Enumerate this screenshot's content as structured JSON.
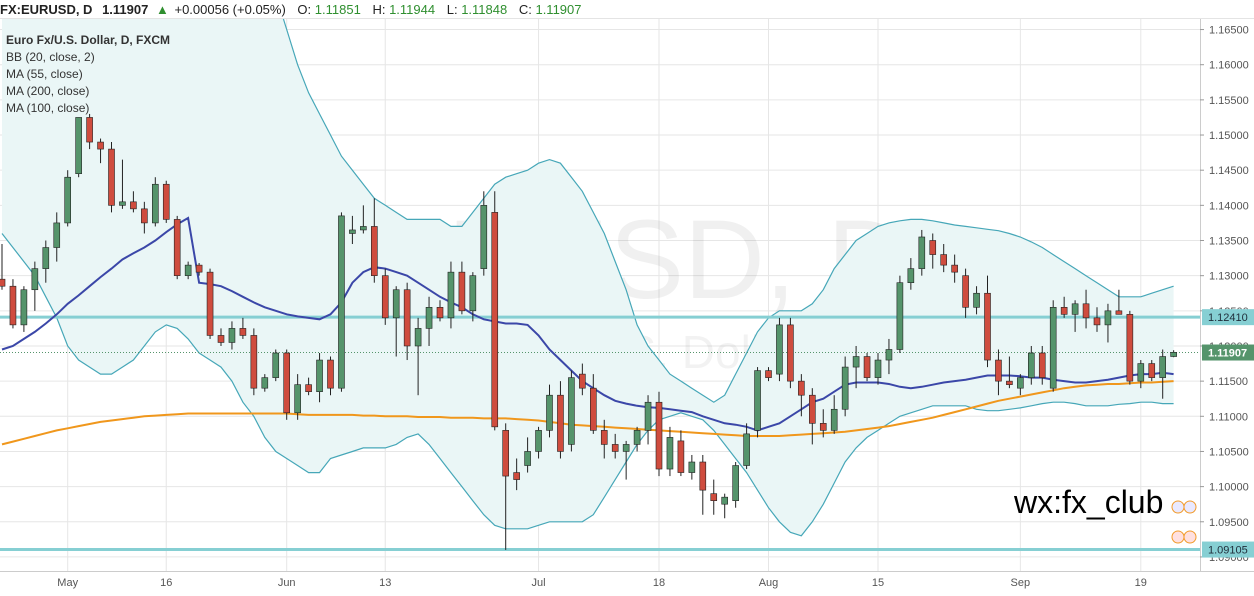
{
  "header": {
    "symbol": "FX:EURUSD, D",
    "last": "1.11907",
    "change": "+0.00056 (+0.05%)",
    "o_label": "O:",
    "o_value": "1.11851",
    "h_label": "H:",
    "h_value": "1.11944",
    "l_label": "L:",
    "l_value": "1.11848",
    "c_label": "C:",
    "c_value": "1.11907"
  },
  "legend": {
    "instrument": "Euro Fx/U.S. Dollar, D, FXCM",
    "studies": [
      "BB (20, close, 2)",
      "MA (55, close)",
      "MA (200, close)",
      "MA (100, close)"
    ]
  },
  "watermark": {
    "main": "EURUSD, D",
    "sub": "Euro FX/U.S. Dollar"
  },
  "annotation": "wx:fx_club",
  "colors": {
    "up": "#55946b",
    "down": "#cf4c3e",
    "bb": "#46a7b8",
    "bb_fill": "#eaf6f6",
    "ma55": "#3b47a8",
    "ma100": "#f0971c",
    "hline": "#86cfd3",
    "grid": "#e6e6e6",
    "axis_text": "#555555",
    "up_text": "#2f8f2f"
  },
  "chart_data": {
    "type": "candlestick",
    "ylim": [
      1.088,
      1.1665
    ],
    "y_ticks": [
      "1.16500",
      "1.16000",
      "1.15500",
      "1.15000",
      "1.14500",
      "1.14000",
      "1.13500",
      "1.13000",
      "1.12500",
      "1.12000",
      "1.11500",
      "1.11000",
      "1.10500",
      "1.10000",
      "1.09500",
      "1.09000"
    ],
    "x_ticks": [
      {
        "label": "May",
        "i": 6
      },
      {
        "label": "16",
        "i": 15
      },
      {
        "label": "Jun",
        "i": 26
      },
      {
        "label": "13",
        "i": 35
      },
      {
        "label": "Jul",
        "i": 49
      },
      {
        "label": "18",
        "i": 60
      },
      {
        "label": "Aug",
        "i": 70
      },
      {
        "label": "15",
        "i": 80
      },
      {
        "label": "Sep",
        "i": 93
      },
      {
        "label": "19",
        "i": 104
      }
    ],
    "candles": [
      [
        1.1295,
        1.1345,
        1.128,
        1.1285
      ],
      [
        1.1285,
        1.1295,
        1.1225,
        1.123
      ],
      [
        1.123,
        1.1285,
        1.122,
        1.128
      ],
      [
        1.128,
        1.132,
        1.125,
        1.131
      ],
      [
        1.131,
        1.135,
        1.129,
        1.134
      ],
      [
        1.134,
        1.139,
        1.132,
        1.1375
      ],
      [
        1.1375,
        1.145,
        1.137,
        1.144
      ],
      [
        1.1445,
        1.1525,
        1.144,
        1.1525
      ],
      [
        1.1525,
        1.153,
        1.148,
        1.149
      ],
      [
        1.149,
        1.1495,
        1.146,
        1.148
      ],
      [
        1.148,
        1.149,
        1.139,
        1.14
      ],
      [
        1.14,
        1.1465,
        1.1395,
        1.1405
      ],
      [
        1.1405,
        1.142,
        1.139,
        1.1395
      ],
      [
        1.1395,
        1.1405,
        1.136,
        1.1375
      ],
      [
        1.1375,
        1.144,
        1.137,
        1.143
      ],
      [
        1.143,
        1.1435,
        1.1375,
        1.138
      ],
      [
        1.138,
        1.1385,
        1.1295,
        1.13
      ],
      [
        1.13,
        1.132,
        1.1295,
        1.1315
      ],
      [
        1.1315,
        1.1318,
        1.13,
        1.1305
      ],
      [
        1.1305,
        1.131,
        1.121,
        1.1215
      ],
      [
        1.1215,
        1.1225,
        1.12,
        1.1205
      ],
      [
        1.1205,
        1.1235,
        1.1195,
        1.1225
      ],
      [
        1.1225,
        1.124,
        1.121,
        1.1215
      ],
      [
        1.1215,
        1.1225,
        1.113,
        1.114
      ],
      [
        1.114,
        1.116,
        1.1135,
        1.1155
      ],
      [
        1.1155,
        1.1195,
        1.115,
        1.119
      ],
      [
        1.119,
        1.1195,
        1.1095,
        1.1105
      ],
      [
        1.1105,
        1.116,
        1.1095,
        1.1145
      ],
      [
        1.1145,
        1.1155,
        1.113,
        1.1135
      ],
      [
        1.1135,
        1.119,
        1.112,
        1.118
      ],
      [
        1.118,
        1.1185,
        1.113,
        1.114
      ],
      [
        1.114,
        1.139,
        1.1135,
        1.1385
      ],
      [
        1.136,
        1.1385,
        1.1345,
        1.1365
      ],
      [
        1.1365,
        1.14,
        1.136,
        1.137
      ],
      [
        1.137,
        1.141,
        1.129,
        1.13
      ],
      [
        1.13,
        1.131,
        1.123,
        1.124
      ],
      [
        1.124,
        1.1285,
        1.1185,
        1.128
      ],
      [
        1.128,
        1.129,
        1.118,
        1.12
      ],
      [
        1.12,
        1.124,
        1.113,
        1.1225
      ],
      [
        1.1225,
        1.127,
        1.12,
        1.1255
      ],
      [
        1.1255,
        1.1265,
        1.1235,
        1.124
      ],
      [
        1.124,
        1.132,
        1.1225,
        1.1305
      ],
      [
        1.1305,
        1.132,
        1.1245,
        1.125
      ],
      [
        1.125,
        1.1305,
        1.1235,
        1.13
      ],
      [
        1.131,
        1.142,
        1.13,
        1.14
      ],
      [
        1.139,
        1.142,
        1.108,
        1.1085
      ],
      [
        1.108,
        1.109,
        1.091,
        1.1015
      ],
      [
        1.102,
        1.104,
        1.0995,
        1.101
      ],
      [
        1.103,
        1.107,
        1.102,
        1.105
      ],
      [
        1.105,
        1.1085,
        1.104,
        1.108
      ],
      [
        1.108,
        1.1145,
        1.107,
        1.113
      ],
      [
        1.113,
        1.115,
        1.104,
        1.105
      ],
      [
        1.106,
        1.1165,
        1.105,
        1.1155
      ],
      [
        1.116,
        1.1175,
        1.113,
        1.114
      ],
      [
        1.114,
        1.116,
        1.1075,
        1.108
      ],
      [
        1.108,
        1.1095,
        1.104,
        1.106
      ],
      [
        1.106,
        1.1075,
        1.104,
        1.105
      ],
      [
        1.105,
        1.1065,
        1.101,
        1.106
      ],
      [
        1.106,
        1.1085,
        1.105,
        1.108
      ],
      [
        1.108,
        1.113,
        1.106,
        1.112
      ],
      [
        1.112,
        1.1135,
        1.1015,
        1.1025
      ],
      [
        1.1025,
        1.1085,
        1.1015,
        1.107
      ],
      [
        1.1065,
        1.108,
        1.1015,
        1.102
      ],
      [
        1.102,
        1.1045,
        1.101,
        1.1035
      ],
      [
        1.1035,
        1.1045,
        1.096,
        1.0995
      ],
      [
        1.099,
        1.101,
        1.096,
        1.098
      ],
      [
        1.0975,
        1.099,
        1.0955,
        1.0985
      ],
      [
        1.098,
        1.1035,
        1.097,
        1.103
      ],
      [
        1.103,
        1.109,
        1.1025,
        1.1075
      ],
      [
        1.108,
        1.117,
        1.107,
        1.1165
      ],
      [
        1.1165,
        1.117,
        1.115,
        1.1155
      ],
      [
        1.116,
        1.124,
        1.115,
        1.123
      ],
      [
        1.123,
        1.124,
        1.114,
        1.115
      ],
      [
        1.115,
        1.116,
        1.11,
        1.113
      ],
      [
        1.113,
        1.114,
        1.106,
        1.109
      ],
      [
        1.109,
        1.111,
        1.107,
        1.108
      ],
      [
        1.108,
        1.113,
        1.1075,
        1.111
      ],
      [
        1.111,
        1.1185,
        1.11,
        1.117
      ],
      [
        1.117,
        1.12,
        1.114,
        1.1185
      ],
      [
        1.1185,
        1.119,
        1.115,
        1.1155
      ],
      [
        1.1155,
        1.119,
        1.1145,
        1.118
      ],
      [
        1.118,
        1.121,
        1.116,
        1.1195
      ],
      [
        1.1195,
        1.13,
        1.119,
        1.129
      ],
      [
        1.129,
        1.1325,
        1.128,
        1.131
      ],
      [
        1.131,
        1.1365,
        1.13,
        1.1355
      ],
      [
        1.135,
        1.136,
        1.131,
        1.133
      ],
      [
        1.133,
        1.1345,
        1.1305,
        1.1315
      ],
      [
        1.1315,
        1.133,
        1.129,
        1.1305
      ],
      [
        1.13,
        1.131,
        1.124,
        1.1255
      ],
      [
        1.1255,
        1.1285,
        1.1245,
        1.1275
      ],
      [
        1.1275,
        1.13,
        1.117,
        1.118
      ],
      [
        1.118,
        1.1195,
        1.113,
        1.115
      ],
      [
        1.115,
        1.1185,
        1.114,
        1.1145
      ],
      [
        1.114,
        1.116,
        1.113,
        1.1155
      ],
      [
        1.1155,
        1.12,
        1.1145,
        1.119
      ],
      [
        1.119,
        1.12,
        1.1145,
        1.1155
      ],
      [
        1.114,
        1.1265,
        1.1135,
        1.1255
      ],
      [
        1.1255,
        1.127,
        1.124,
        1.1245
      ],
      [
        1.1245,
        1.1265,
        1.122,
        1.126
      ],
      [
        1.126,
        1.128,
        1.1225,
        1.124
      ],
      [
        1.124,
        1.1255,
        1.122,
        1.123
      ],
      [
        1.123,
        1.126,
        1.1205,
        1.125
      ],
      [
        1.125,
        1.128,
        1.1245,
        1.1245
      ],
      [
        1.1245,
        1.125,
        1.1145,
        1.115
      ],
      [
        1.115,
        1.118,
        1.114,
        1.1175
      ],
      [
        1.1175,
        1.118,
        1.115,
        1.1155
      ],
      [
        1.1155,
        1.1195,
        1.1125,
        1.1185
      ],
      [
        1.1185,
        1.1194,
        1.1184,
        1.1191
      ]
    ],
    "ma55": [
      1.1195,
      1.12,
      1.121,
      1.122,
      1.1232,
      1.1245,
      1.126,
      1.1272,
      1.1285,
      1.1298,
      1.131,
      1.1323,
      1.1332,
      1.134,
      1.135,
      1.1362,
      1.1373,
      1.1382,
      1.129,
      1.1288,
      1.1285,
      1.1278,
      1.127,
      1.1262,
      1.1255,
      1.125,
      1.1245,
      1.1242,
      1.124,
      1.1238,
      1.1245,
      1.1262,
      1.129,
      1.1305,
      1.1312,
      1.131,
      1.1305,
      1.13,
      1.129,
      1.128,
      1.127,
      1.1262,
      1.1255,
      1.1245,
      1.1238,
      1.1235,
      1.1232,
      1.1232,
      1.123,
      1.1215,
      1.1195,
      1.118,
      1.1165,
      1.115,
      1.114,
      1.113,
      1.1122,
      1.1118,
      1.1115,
      1.1113,
      1.1112,
      1.111,
      1.1108,
      1.1106,
      1.11,
      1.1095,
      1.109,
      1.1088,
      1.1085,
      1.108,
      1.1085,
      1.109,
      1.11,
      1.111,
      1.112,
      1.1125,
      1.1135,
      1.1145,
      1.1148,
      1.1148,
      1.1148,
      1.1146,
      1.1142,
      1.114,
      1.1142,
      1.1145,
      1.1148,
      1.115,
      1.1152,
      1.1155,
      1.1158,
      1.1158,
      1.1158,
      1.1157,
      1.1155,
      1.1155,
      1.1152,
      1.115,
      1.1148,
      1.1148,
      1.115,
      1.1152,
      1.1155,
      1.1158,
      1.116,
      1.116,
      1.1162,
      1.116
    ],
    "ma100": [
      1.106,
      1.1064,
      1.1068,
      1.1072,
      1.1076,
      1.108,
      1.1083,
      1.1086,
      1.1089,
      1.1092,
      1.1094,
      1.1096,
      1.1098,
      1.11,
      1.1101,
      1.1102,
      1.1103,
      1.1104,
      1.1104,
      1.1104,
      1.1104,
      1.1104,
      1.1104,
      1.1104,
      1.1104,
      1.1104,
      1.1104,
      1.1103,
      1.1102,
      1.1102,
      1.1102,
      1.1102,
      1.1102,
      1.1101,
      1.1101,
      1.11,
      1.11,
      1.11,
      1.1099,
      1.1099,
      1.1099,
      1.1098,
      1.1098,
      1.1098,
      1.1097,
      1.1097,
      1.1097,
      1.1096,
      1.1095,
      1.1094,
      1.1092,
      1.109,
      1.1088,
      1.1087,
      1.1086,
      1.1085,
      1.1084,
      1.1083,
      1.1082,
      1.1081,
      1.108,
      1.1079,
      1.1078,
      1.1077,
      1.1076,
      1.1075,
      1.1074,
      1.1073,
      1.1072,
      1.1072,
      1.1072,
      1.1072,
      1.1073,
      1.1074,
      1.1075,
      1.1076,
      1.1077,
      1.1078,
      1.108,
      1.1082,
      1.1084,
      1.1086,
      1.1089,
      1.1092,
      1.1095,
      1.1098,
      1.1102,
      1.1106,
      1.111,
      1.1114,
      1.1118,
      1.1122,
      1.1125,
      1.1128,
      1.1131,
      1.1134,
      1.1137,
      1.114,
      1.1142,
      1.1144,
      1.1145,
      1.1146,
      1.1146,
      1.1147,
      1.1148,
      1.1148,
      1.1149,
      1.115
    ],
    "bb_upper": [
      1.172,
      1.177,
      1.184,
      1.19,
      1.19,
      1.195,
      1.2,
      1.204,
      1.205,
      1.207,
      1.206,
      1.205,
      1.204,
      1.203,
      1.202,
      1.2,
      1.198,
      1.195,
      1.192,
      1.19,
      1.188,
      1.185,
      1.182,
      1.179,
      1.175,
      1.17,
      1.165,
      1.16,
      1.156,
      1.153,
      1.15,
      1.147,
      1.145,
      1.143,
      1.141,
      1.14,
      1.139,
      1.138,
      1.138,
      1.138,
      1.138,
      1.137,
      1.137,
      1.139,
      1.141,
      1.143,
      1.144,
      1.1445,
      1.145,
      1.146,
      1.1465,
      1.146,
      1.144,
      1.142,
      1.139,
      1.136,
      1.132,
      1.128,
      1.123,
      1.12,
      1.118,
      1.116,
      1.115,
      1.114,
      1.113,
      1.112,
      1.113,
      1.116,
      1.119,
      1.122,
      1.124,
      1.125,
      1.125,
      1.125,
      1.126,
      1.128,
      1.131,
      1.133,
      1.135,
      1.136,
      1.137,
      1.1375,
      1.1378,
      1.138,
      1.138,
      1.1378,
      1.1375,
      1.1372,
      1.137,
      1.1368,
      1.1366,
      1.1364,
      1.136,
      1.1355,
      1.1348,
      1.134,
      1.133,
      1.132,
      1.131,
      1.13,
      1.129,
      1.128,
      1.127,
      1.127,
      1.127,
      1.1275,
      1.128,
      1.1285
    ],
    "bb_lower": [
      1.136,
      1.134,
      1.132,
      1.13,
      1.127,
      1.124,
      1.12,
      1.118,
      1.117,
      1.116,
      1.116,
      1.117,
      1.118,
      1.12,
      1.122,
      1.123,
      1.1225,
      1.121,
      1.119,
      1.118,
      1.117,
      1.115,
      1.112,
      1.11,
      1.107,
      1.105,
      1.104,
      1.103,
      1.102,
      1.102,
      1.104,
      1.1045,
      1.105,
      1.1055,
      1.1055,
      1.1055,
      1.106,
      1.107,
      1.1075,
      1.106,
      1.104,
      1.102,
      1.1,
      1.098,
      1.096,
      1.0945,
      1.094,
      1.094,
      1.094,
      1.0945,
      1.095,
      1.095,
      1.095,
      1.095,
      1.096,
      1.0985,
      1.101,
      1.1035,
      1.106,
      1.108,
      1.1095,
      1.11,
      1.1105,
      1.11,
      1.1095,
      1.108,
      1.106,
      1.104,
      1.102,
      1.0995,
      1.097,
      1.095,
      1.0935,
      1.093,
      1.095,
      1.0975,
      1.1005,
      1.1035,
      1.1055,
      1.107,
      1.108,
      1.109,
      1.11,
      1.1105,
      1.111,
      1.1115,
      1.1115,
      1.1115,
      1.1115,
      1.111,
      1.1108,
      1.1108,
      1.111,
      1.1112,
      1.1115,
      1.1118,
      1.112,
      1.112,
      1.1118,
      1.1115,
      1.1115,
      1.1115,
      1.1117,
      1.1118,
      1.112,
      1.112,
      1.1118,
      1.1118
    ],
    "hlines": [
      {
        "value": 1.1241,
        "label": "1.12410"
      },
      {
        "value": 1.09105,
        "label": "1.09105"
      }
    ],
    "last_price": {
      "value": 1.11907,
      "label": "1.11907"
    },
    "xlabel": "",
    "ylabel": ""
  }
}
